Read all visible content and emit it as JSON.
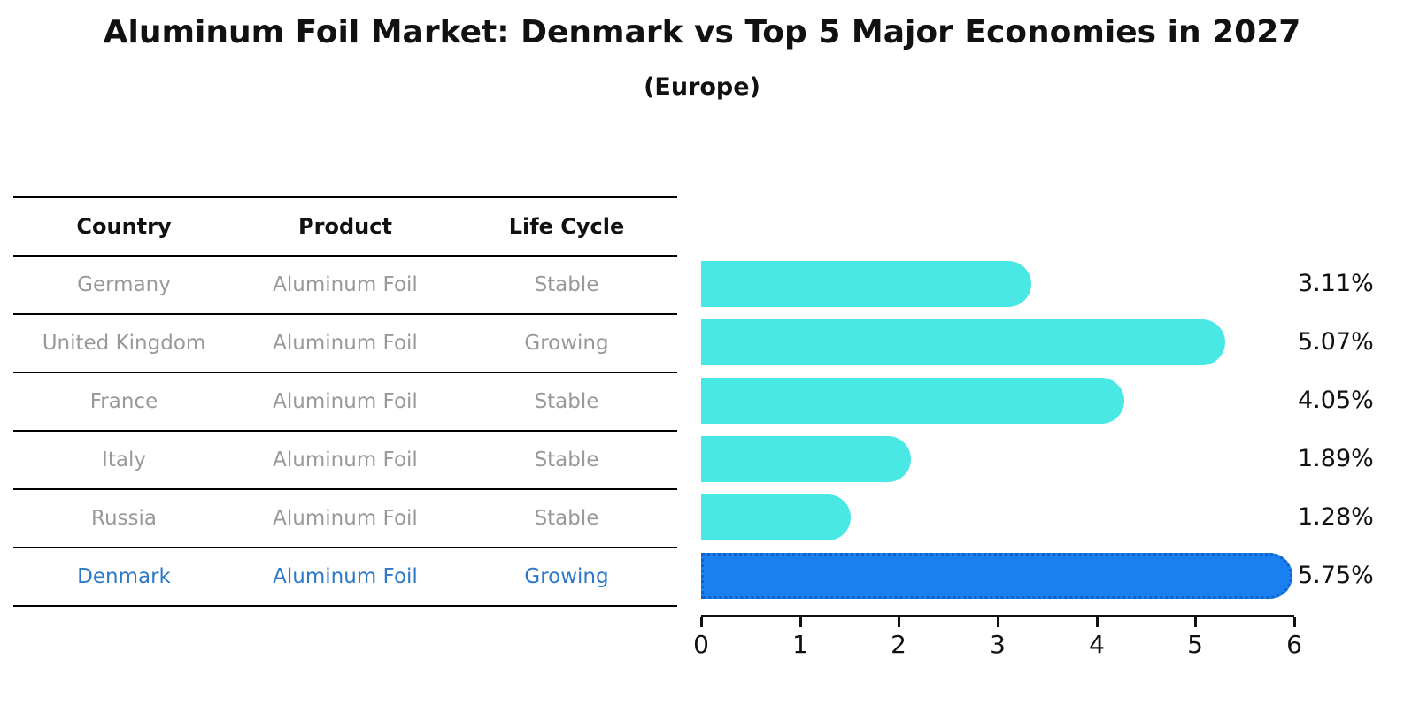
{
  "title": "Aluminum Foil Market: Denmark vs Top 5 Major Economies in 2027",
  "subtitle": "(Europe)",
  "colors": {
    "bar": "#4AE8E4",
    "highlight_bar": "#1A80F0",
    "highlight_bar_border": "#0E62C8",
    "row_text": "#999999",
    "highlight_text": "#2E79C7",
    "header_text": "#111111",
    "axis": "#111111"
  },
  "table": {
    "headers": [
      "Country",
      "Product",
      "Life Cycle"
    ],
    "rows": [
      {
        "country": "Germany",
        "product": "Aluminum Foil",
        "life_cycle": "Stable",
        "highlight": false
      },
      {
        "country": "United Kingdom",
        "product": "Aluminum Foil",
        "life_cycle": "Growing",
        "highlight": false
      },
      {
        "country": "France",
        "product": "Aluminum Foil",
        "life_cycle": "Stable",
        "highlight": false
      },
      {
        "country": "Italy",
        "product": "Aluminum Foil",
        "life_cycle": "Stable",
        "highlight": false
      },
      {
        "country": "Russia",
        "product": "Aluminum Foil",
        "life_cycle": "Stable",
        "highlight": false
      },
      {
        "country": "Denmark",
        "product": "Aluminum Foil",
        "life_cycle": "Growing",
        "highlight": true
      }
    ]
  },
  "chart_data": {
    "type": "bar",
    "orientation": "horizontal",
    "title": "Aluminum Foil Market: Denmark vs Top 5 Major Economies in 2027 (Europe)",
    "categories": [
      "Germany",
      "United Kingdom",
      "France",
      "Italy",
      "Russia",
      "Denmark"
    ],
    "values": [
      3.11,
      5.07,
      4.05,
      1.89,
      1.28,
      5.75
    ],
    "value_labels": [
      "3.11%",
      "5.07%",
      "4.05%",
      "1.89%",
      "1.28%",
      "5.75%"
    ],
    "highlight_index": 5,
    "xlabel": "",
    "ylabel": "",
    "xlim": [
      0,
      6
    ],
    "xticks": [
      "0",
      "1",
      "2",
      "3",
      "4",
      "5",
      "6"
    ],
    "grid": false,
    "legend": false
  }
}
